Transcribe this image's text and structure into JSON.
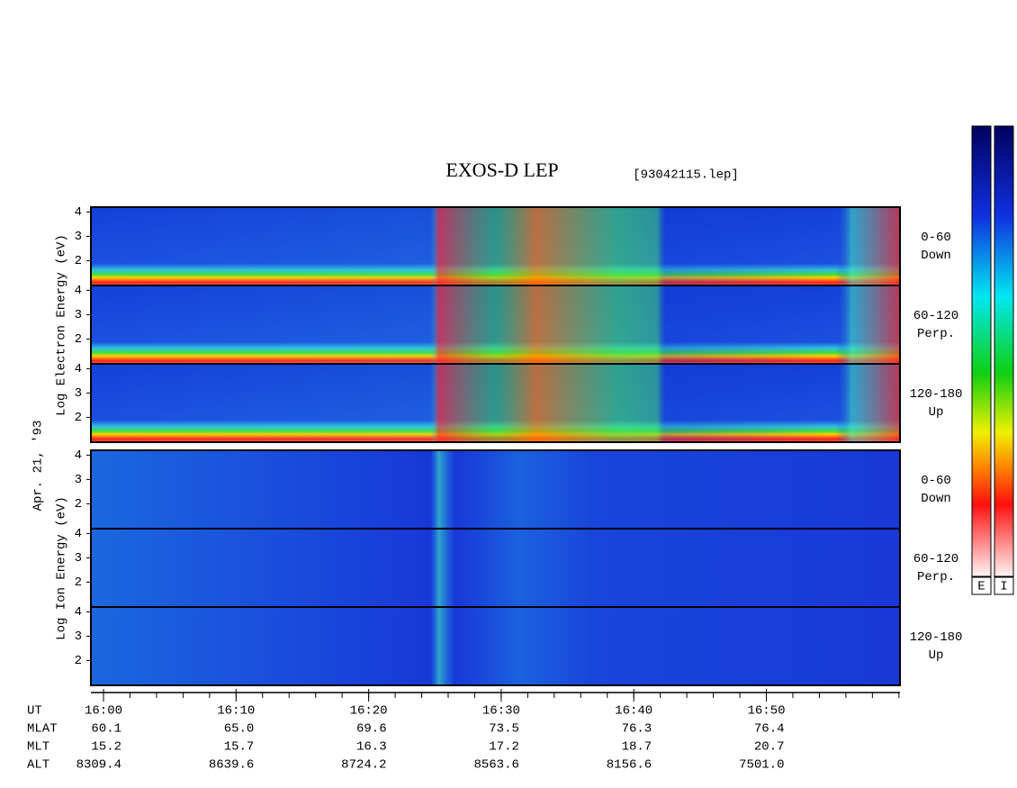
{
  "title": "EXOS-D LEP",
  "file": "[93042115.lep]",
  "date": "Apr. 21, '93",
  "electron_axis_label": "Log   Electron   Energy (eV)",
  "ion_axis_label": "Log   Ion   Energy (eV)",
  "panels": [
    {
      "species": "electron",
      "angle": "0-60",
      "direction": "Down",
      "ylim": [
        0.98,
        4.2
      ],
      "yticks": [
        2,
        3,
        4
      ]
    },
    {
      "species": "electron",
      "angle": "60-120",
      "direction": "Perp.",
      "ylim": [
        0.98,
        4.2
      ],
      "yticks": [
        2,
        3,
        4
      ]
    },
    {
      "species": "electron",
      "angle": "120-180",
      "direction": "Up",
      "ylim": [
        0.98,
        4.2
      ],
      "yticks": [
        2,
        3,
        4
      ]
    },
    {
      "species": "ion",
      "angle": "0-60",
      "direction": "Down",
      "ylim": [
        0.98,
        4.2
      ],
      "yticks": [
        2,
        3,
        4
      ]
    },
    {
      "species": "ion",
      "angle": "60-120",
      "direction": "Perp.",
      "ylim": [
        0.98,
        4.2
      ],
      "yticks": [
        2,
        3,
        4
      ]
    },
    {
      "species": "ion",
      "angle": "120-180",
      "direction": "Up",
      "ylim": [
        0.98,
        4.2
      ],
      "yticks": [
        2,
        3,
        4
      ]
    }
  ],
  "ephemeris": {
    "row_labels": [
      "UT",
      "MLAT",
      "MLT",
      "ALT"
    ],
    "UT": [
      "16:00",
      "16:10",
      "16:20",
      "16:30",
      "16:40",
      "16:50"
    ],
    "MLAT": [
      "60.1",
      "65.0",
      "69.6",
      "73.5",
      "76.3",
      "76.4"
    ],
    "MLT": [
      "15.2",
      "15.7",
      "16.3",
      "17.2",
      "18.7",
      "20.7"
    ],
    "ALT": [
      "8309.4",
      "8639.6",
      "8724.2",
      "8563.6",
      "8156.6",
      "7501.0"
    ]
  },
  "colorbars": [
    "E",
    "I"
  ]
}
